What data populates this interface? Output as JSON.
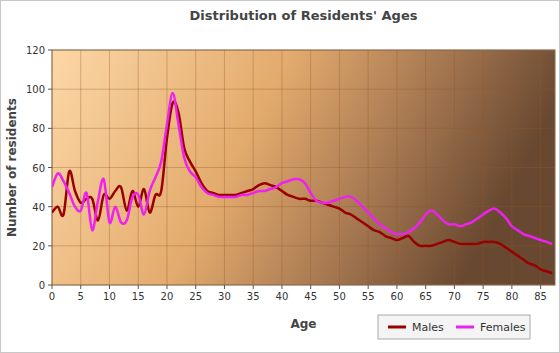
{
  "chart_data": {
    "type": "line",
    "title": "Distribution of Residents' Ages",
    "x_label": "Age",
    "y_label": "Number of residents",
    "x": [
      0,
      1,
      2,
      3,
      4,
      5,
      6,
      7,
      8,
      9,
      10,
      11,
      12,
      13,
      14,
      15,
      16,
      17,
      18,
      19,
      20,
      21,
      22,
      23,
      24,
      25,
      26,
      27,
      28,
      29,
      30,
      31,
      32,
      33,
      34,
      35,
      36,
      37,
      38,
      39,
      40,
      41,
      42,
      43,
      44,
      45,
      46,
      47,
      48,
      49,
      50,
      51,
      52,
      53,
      54,
      55,
      56,
      57,
      58,
      59,
      60,
      61,
      62,
      63,
      64,
      65,
      66,
      67,
      68,
      69,
      70,
      71,
      72,
      73,
      74,
      75,
      76,
      77,
      78,
      79,
      80,
      81,
      82,
      83,
      84,
      85,
      86,
      87
    ],
    "series": [
      {
        "name": "Males",
        "color": "#990000",
        "values": [
          37,
          40,
          36,
          58,
          48,
          42,
          44,
          44,
          33,
          46,
          44,
          48,
          50,
          38,
          48,
          40,
          49,
          37,
          46,
          48,
          75,
          93,
          88,
          70,
          63,
          58,
          52,
          48,
          47,
          46,
          46,
          46,
          46,
          47,
          48,
          49,
          51,
          52,
          51,
          50,
          48,
          46,
          45,
          44,
          44,
          43,
          43,
          42,
          41,
          40,
          39,
          37,
          36,
          34,
          32,
          30,
          28,
          27,
          25,
          24,
          23,
          24,
          25,
          22,
          20,
          20,
          20,
          21,
          22,
          23,
          22,
          21,
          21,
          21,
          21,
          22,
          22,
          22,
          21,
          19,
          17,
          15,
          13,
          11,
          10,
          8,
          7,
          6
        ]
      },
      {
        "name": "Females",
        "color": "#ee22ee",
        "values": [
          50,
          57,
          53,
          47,
          40,
          38,
          47,
          28,
          43,
          54,
          32,
          40,
          32,
          33,
          45,
          46,
          36,
          48,
          55,
          63,
          82,
          98,
          82,
          65,
          58,
          55,
          50,
          47,
          46,
          45,
          45,
          45,
          45,
          46,
          46,
          47,
          48,
          48,
          49,
          50,
          52,
          53,
          54,
          54,
          52,
          47,
          43,
          42,
          42,
          43,
          44,
          45,
          45,
          43,
          40,
          37,
          34,
          31,
          29,
          27,
          26,
          26,
          27,
          29,
          32,
          36,
          38,
          36,
          33,
          31,
          31,
          30,
          31,
          32,
          34,
          36,
          38,
          39,
          37,
          34,
          30,
          28,
          26,
          25,
          24,
          23,
          22,
          21
        ]
      }
    ],
    "xlim": [
      0,
      87.5
    ],
    "xticks": [
      0,
      5,
      10,
      15,
      20,
      25,
      30,
      35,
      40,
      45,
      50,
      55,
      60,
      65,
      70,
      75,
      80,
      85
    ],
    "ylim": [
      0,
      120
    ],
    "yticks": [
      0,
      20,
      40,
      60,
      80,
      100,
      120
    ],
    "grid": true,
    "legend": "bottom-right"
  }
}
